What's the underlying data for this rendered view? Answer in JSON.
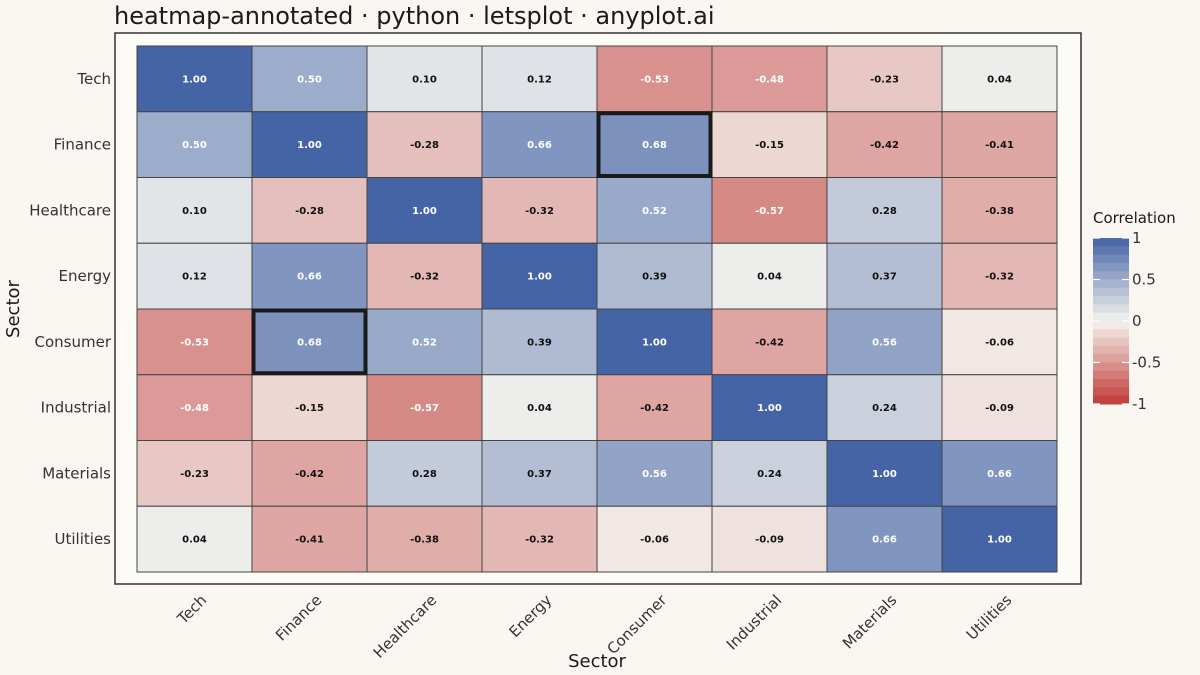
{
  "header": {
    "title": "heatmap-annotated · python · letsplot · anyplot.ai"
  },
  "chart_data": {
    "type": "heatmap",
    "x_categories": [
      "Tech",
      "Finance",
      "Healthcare",
      "Energy",
      "Consumer",
      "Industrial",
      "Materials",
      "Utilities"
    ],
    "y_categories": [
      "Tech",
      "Finance",
      "Healthcare",
      "Energy",
      "Consumer",
      "Industrial",
      "Materials",
      "Utilities"
    ],
    "xlabel": "Sector",
    "ylabel": "Sector",
    "values": [
      [
        1.0,
        0.5,
        0.1,
        0.12,
        -0.53,
        -0.48,
        -0.23,
        0.04
      ],
      [
        0.5,
        1.0,
        -0.28,
        0.66,
        0.68,
        -0.15,
        -0.42,
        -0.41
      ],
      [
        0.1,
        -0.28,
        1.0,
        -0.32,
        0.52,
        -0.57,
        0.28,
        -0.38
      ],
      [
        0.12,
        0.66,
        -0.32,
        1.0,
        0.39,
        0.04,
        0.37,
        -0.32
      ],
      [
        -0.53,
        0.68,
        0.52,
        0.39,
        1.0,
        -0.42,
        0.56,
        -0.06
      ],
      [
        -0.48,
        -0.15,
        -0.57,
        0.04,
        -0.42,
        1.0,
        0.24,
        -0.09
      ],
      [
        -0.23,
        -0.42,
        0.28,
        0.37,
        0.56,
        0.24,
        1.0,
        0.66
      ],
      [
        0.04,
        -0.41,
        -0.38,
        -0.32,
        -0.06,
        -0.09,
        0.66,
        1.0
      ]
    ],
    "highlighted_cells": [
      {
        "row": "Finance",
        "col": "Consumer"
      },
      {
        "row": "Consumer",
        "col": "Finance"
      }
    ],
    "legend": {
      "title": "Correlation",
      "ticks": [
        "1",
        "0.5",
        "0",
        "-0.5",
        "-1"
      ],
      "tick_values": [
        1,
        0.5,
        0,
        -0.5,
        -1
      ],
      "range": [
        -1,
        1
      ],
      "placement": "right"
    },
    "colors": {
      "high": "#4464A6",
      "mid": "#F4F3EF",
      "low": "#C03A37",
      "highlight_border": "#1a1a1a"
    }
  }
}
